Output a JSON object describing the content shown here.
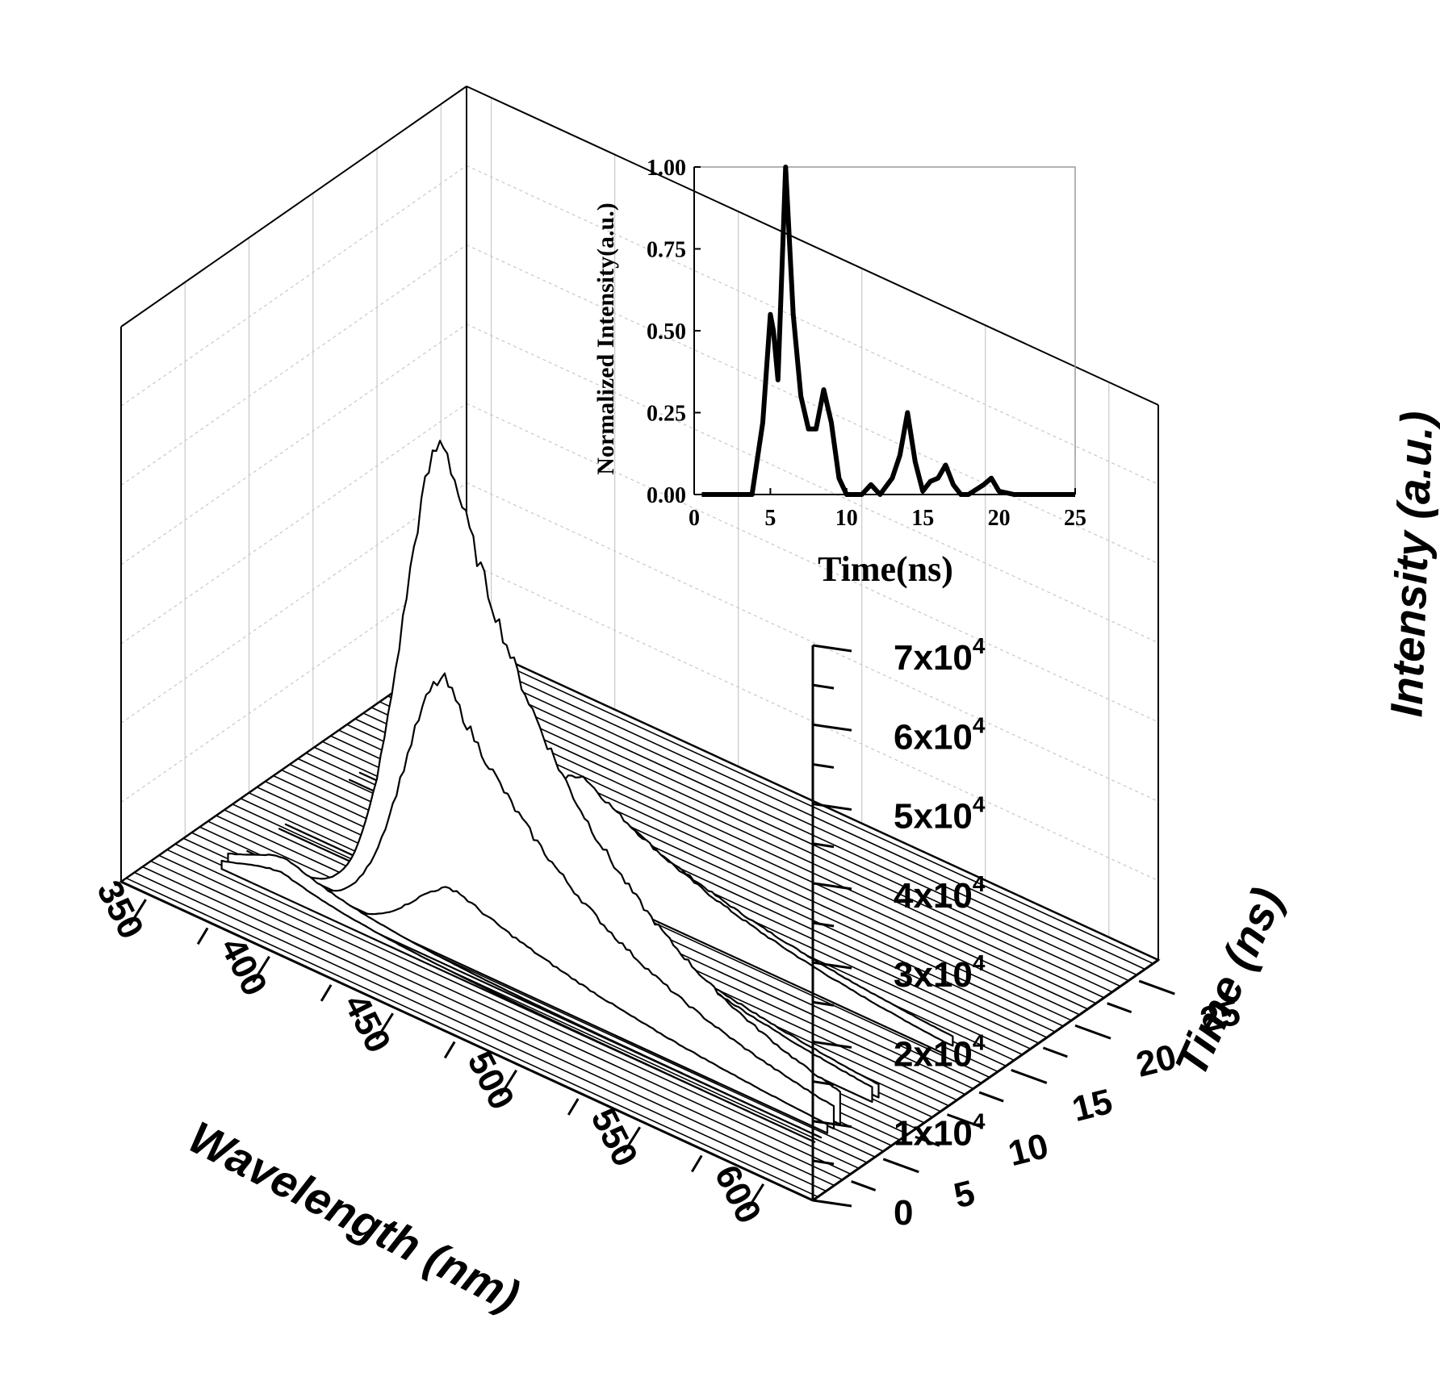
{
  "chart_data": [
    {
      "type": "waterfall-3d",
      "x_axis": {
        "label": "Wavelength (nm)",
        "ticks": [
          "350",
          "400",
          "450",
          "500",
          "550",
          "600"
        ],
        "range": [
          340,
          620
        ]
      },
      "z_axis": {
        "label": "Intensity (a.u.)",
        "ticks": [
          "0",
          "1x10",
          "2x10",
          "3x10",
          "4x10",
          "5x10",
          "6x10",
          "7x10"
        ],
        "tick_exponent": "4",
        "range": [
          0,
          70000
        ]
      },
      "y_axis": {
        "label": "Time (ns)",
        "ticks": [
          "5",
          "10",
          "15",
          "20",
          "25"
        ],
        "range": [
          0,
          27
        ]
      },
      "grid": true,
      "baseline_traces": 42,
      "series": [
        {
          "time": 6.0,
          "peak_wavelength": 440,
          "peak_intensity": 63000,
          "width": 130
        },
        {
          "time": 5.5,
          "peak_wavelength": 443,
          "peak_intensity": 34000,
          "width": 140
        },
        {
          "time": 8.5,
          "peak_wavelength": 455,
          "peak_intensity": 16000,
          "width": 150
        },
        {
          "time": 9.0,
          "peak_wavelength": 455,
          "peak_intensity": 14000,
          "width": 150
        },
        {
          "time": 14.0,
          "peak_wavelength": 455,
          "peak_intensity": 14000,
          "width": 145
        },
        {
          "time": 14.8,
          "peak_wavelength": 455,
          "peak_intensity": 11000,
          "width": 145
        },
        {
          "time": 5.0,
          "peak_wavelength": 450,
          "peak_intensity": 9000,
          "width": 160
        },
        {
          "time": 4.5,
          "peak_wavelength": 385,
          "peak_intensity": 4000,
          "width": 75
        },
        {
          "time": 4.0,
          "peak_wavelength": 385,
          "peak_intensity": 3000,
          "width": 75
        }
      ]
    },
    {
      "type": "line",
      "inset": true,
      "xlabel": "Time(ns)",
      "ylabel": "Normalized Intensity(a.u.)",
      "xlim": [
        0,
        25
      ],
      "ylim": [
        0,
        1.0
      ],
      "xticks": [
        "0",
        "5",
        "10",
        "15",
        "20",
        "25"
      ],
      "yticks": [
        "0.00",
        "0.25",
        "0.50",
        "0.75",
        "1.00"
      ],
      "series": [
        {
          "x": [
            0.5,
            3.8,
            4.5,
            5.0,
            5.2,
            5.5,
            6.0,
            6.5,
            7.0,
            7.5,
            8.0,
            8.5,
            9.0,
            9.5,
            10.0,
            11.0,
            11.6,
            12.2,
            13.0,
            13.5,
            14.0,
            14.5,
            15.0,
            15.5,
            16.0,
            16.5,
            17.0,
            17.5,
            18.0,
            19.0,
            19.5,
            20.0,
            21.0,
            25.0
          ],
          "y": [
            0.0,
            0.0,
            0.22,
            0.55,
            0.5,
            0.35,
            1.0,
            0.55,
            0.3,
            0.2,
            0.2,
            0.32,
            0.22,
            0.05,
            0.0,
            0.0,
            0.03,
            0.0,
            0.05,
            0.12,
            0.25,
            0.1,
            0.01,
            0.04,
            0.05,
            0.09,
            0.03,
            0.0,
            0.0,
            0.03,
            0.05,
            0.01,
            0.0,
            0.0
          ]
        }
      ]
    }
  ]
}
